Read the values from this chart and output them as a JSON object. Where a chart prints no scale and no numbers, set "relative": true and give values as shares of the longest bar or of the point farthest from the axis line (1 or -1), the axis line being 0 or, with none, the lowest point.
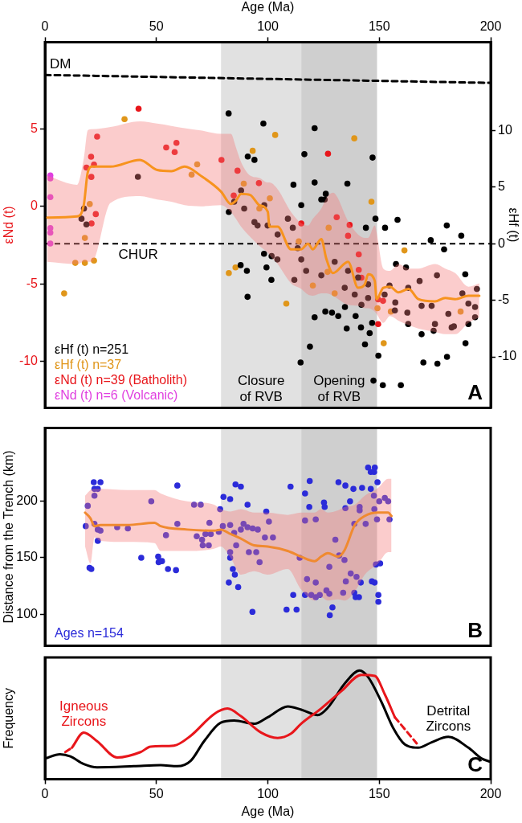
{
  "chart_data": [
    {
      "type": "scatter",
      "xlim": [
        0,
        200
      ],
      "tick_labels": "y",
      "x2label": "Age (Ma)",
      "x2lim": [
        0,
        200
      ],
      "x2ticks": [
        0,
        50,
        100,
        150,
        200
      ],
      "ylabel": "εNd (t)",
      "ylim": [
        -13,
        10.6
      ],
      "yticks": [
        -10,
        -5,
        0,
        5
      ],
      "y2label": "εHf (t)",
      "y2lim": [
        -14.5,
        17.8
      ],
      "y2ticks": [
        -10,
        -5,
        0,
        5,
        10
      ],
      "marker": "circle",
      "legend": "bottom left",
      "bands": [
        {
          "axis": "x",
          "from": 79,
          "to": 115,
          "label": "Closure of RVB",
          "color": "#e1e1e1"
        },
        {
          "axis": "x",
          "from": 115,
          "to": 149,
          "label": "Opening of RVB",
          "color": "#cfcfcf"
        }
      ],
      "ref_lines": [
        {
          "axis": "y2",
          "value": 0,
          "label": "CHUR",
          "line_style": "dashed",
          "color": "#000000"
        }
      ],
      "annotations": [
        "A"
      ],
      "series": [
        {
          "name": "εHf (t) n=251",
          "color": "#000000",
          "axis": "y2",
          "x": [
            82.4,
            98.0,
            121,
            91,
            94,
            116.4,
            147,
            41.7,
            111.5,
            121,
            135.7,
            126,
            115,
            148.3,
            158.2,
            152.6,
            144,
            180.3,
            186.8,
            173.1,
            179.1,
            17.5,
            16.4,
            18.6,
            98.3,
            101.7,
            104.3,
            87.8,
            90.6,
            99.4,
            101.6,
            90.9,
            125.8,
            128.8,
            131.6,
            134.6,
            139.4,
            135.4,
            141.8,
            146.8,
            121,
            145.7,
            143.6,
            118.9,
            114.7,
            149.6,
            147.4,
            151.6,
            159.7,
            169.8,
            176.1,
            180.4,
            188.7,
            174.4,
            169,
            183.5,
            193,
            190,
            188.6,
            175.9,
            168.1,
            157.5,
            162,
            154.6,
            157.2,
            162.6,
            173.5,
            181,
            187.3,
            82.5,
            84.9,
            88,
            89.4,
            94,
            95.4,
            98.4,
            99.9,
            104.4,
            109,
            111.2,
            113.4,
            115,
            117.2,
            111.9,
            124,
            124,
            125.5,
            130,
            136,
            134.5,
            139,
            142,
            145,
            140.5,
            145,
            152.4,
            157,
            163,
            169,
            163,
            175,
            182.5,
            190,
            193.8,
            193
          ],
          "values": [
            11.5,
            10.6,
            10.2,
            7.7,
            7.4,
            7.9,
            7.6,
            5.9,
            5.2,
            5.4,
            5.3,
            4.4,
            3.4,
            2.2,
            2.1,
            1.4,
            1.4,
            1.6,
            0.7,
            0.3,
            -0.5,
            3.1,
            2.2,
            1.7,
            -0.9,
            -1.1,
            -1.4,
            -1.9,
            -2.4,
            -2.1,
            -3.2,
            -4.7,
            -6.0,
            -6.1,
            -6.4,
            -5.6,
            -6.4,
            -7.5,
            -7.4,
            -7.0,
            -6.5,
            -7.9,
            -8.9,
            -9.1,
            -10.5,
            -9.9,
            -12.1,
            -12.5,
            -12.5,
            -10.5,
            -10.6,
            -10.0,
            -8.8,
            -7.7,
            -8.0,
            -7.3,
            -6.5,
            -5.3,
            -2.7,
            -2.8,
            -3.3,
            -1.8,
            -2.1,
            -3.7,
            -5.2,
            -6.1,
            -5.5,
            -6.2,
            -4.4,
            2.8,
            3.7,
            4.7,
            3.1,
            1.9,
            1.6,
            3.4,
            1.6,
            0.8,
            2.2,
            1.4,
            -0.4,
            -1.4,
            -2.4,
            -3.2,
            -2.8,
            3.9,
            3.9,
            -1.6,
            -2.4,
            -3.9,
            -4.5,
            -5.4,
            -4.8,
            -3.0,
            -3.6,
            -4.5,
            -5.9,
            -3.9,
            -5.5,
            -7.1,
            -7.1,
            -7.4,
            -7.1,
            -4.0,
            -5.6
          ]
        },
        {
          "name": "εHf (t) n=37",
          "color": "#e0961a",
          "axis": "y2",
          "x": [
            35.7,
            103.3,
            138.8,
            93.2,
            68.3,
            65.8,
            89.2,
            100.9,
            20.1,
            17.9,
            13.6,
            17.9,
            22,
            8.6,
            82.5,
            85.5,
            108.3,
            96.2,
            146.5,
            161.3,
            127.3,
            126.8,
            130,
            113.9,
            152,
            149.2,
            155.2,
            186.5,
            120.2
          ],
          "values": [
            11.0,
            9.6,
            9.3,
            8.2,
            7.0,
            6.1,
            5.3,
            4.0,
            3.5,
            0.5,
            -1.7,
            -1.7,
            -1.5,
            -4.4,
            -2.6,
            -2.1,
            -5.3,
            3.1,
            3.7,
            -0.6,
            1.4,
            -2.5,
            -4.4,
            0.2,
            -8.8,
            -5.7,
            -6.0,
            -6.0,
            -3.7
          ]
        },
        {
          "name": "εNd (t) n=39 (Batholith)",
          "color": "#e8161b",
          "axis": "y",
          "x": [
            42,
            23.4,
            20.7,
            18.6,
            22,
            20.8,
            22.8,
            20.9,
            54.4,
            58.2,
            59,
            79.2,
            86.4,
            96,
            84.7,
            127,
            130.9,
            115,
            136.7,
            136,
            140.8,
            140.8,
            142,
            149.5,
            149.5,
            151.7
          ],
          "values": [
            6.3,
            4.5,
            3.2,
            2.5,
            2.7,
            1.9,
            -0.5,
            -1.1,
            3.8,
            3.5,
            4.1,
            3.0,
            2.3,
            1.5,
            0.7,
            3.4,
            -0.7,
            -1.1,
            -1.2,
            -1.9,
            -3.1,
            -4.1,
            -4.6,
            -6.0,
            -7.6,
            -6.1
          ]
        },
        {
          "name": "εNd (t) n=6 (Volcanic)",
          "color": "#e040e0",
          "axis": "y",
          "x": [
            2.4,
            2.4,
            2.4,
            2.4,
            2.4,
            2.4
          ],
          "values": [
            2.0,
            1.8,
            0.6,
            -1.4,
            -1.7,
            -2.4
          ]
        },
        {
          "type": "line",
          "marker": "none",
          "color": "#f7931e",
          "axis": "y2",
          "x": [
            0.9,
            14.4,
            17.4,
            19.2,
            21.1,
            29.4,
            42.6,
            50.4,
            56.7,
            62.7,
            69.9,
            79,
            83.4,
            85.7,
            88,
            92.1,
            96.2,
            100,
            100.7,
            104.4,
            110.4,
            115,
            118,
            120.2,
            124,
            126.2,
            129.2,
            136,
            140.5,
            143.5,
            145,
            148,
            148.8,
            151.8,
            154.8,
            158.6,
            163.2,
            167.5,
            175,
            179.6,
            184.1,
            190,
            194.9
          ],
          "values": [
            2.3,
            2.4,
            3.4,
            6.3,
            6.8,
            6.8,
            7.4,
            6.5,
            6.4,
            6.8,
            6.0,
            4.6,
            3.5,
            3.8,
            4.4,
            4.3,
            3.4,
            2.8,
            1.5,
            1.5,
            -0.5,
            -0.5,
            0.0,
            -0.5,
            0.4,
            -1.3,
            -2.6,
            -1.6,
            -3.9,
            -3.6,
            -2.7,
            -3.3,
            -4.9,
            -3.9,
            -3.8,
            -4.3,
            -4.0,
            -4.9,
            -5.1,
            -4.8,
            -4.9,
            -4.6,
            -4.6
          ],
          "upper": [
            6.0,
            5.2,
            7.5,
            10.0,
            10.1,
            10.3,
            10.8,
            10.6,
            10.4,
            10.2,
            10.0,
            9.7,
            9.7,
            8.5,
            7.2,
            6.0,
            5.8,
            5.4,
            5.4,
            4.8,
            2.8,
            1.8,
            1.6,
            2.2,
            3.1,
            4.0,
            4.5,
            2.0,
            0.8,
            0.5,
            0.5,
            1.6,
            1.0,
            -2.2,
            -2.4,
            -1.8,
            -2.2,
            -2.2,
            -1.8,
            -2.2,
            -2.6,
            -3.8,
            -3.5
          ],
          "lower": [
            -1.6,
            -1.8,
            -1.6,
            -1.6,
            -1.6,
            3.6,
            4.2,
            3.9,
            3.7,
            3.4,
            3.3,
            3.4,
            2.8,
            2.2,
            1.5,
            0.6,
            -0.2,
            -0.8,
            -1.0,
            -1.8,
            -3.5,
            -4.0,
            -4.5,
            -4.6,
            -4.4,
            -4.4,
            -4.6,
            -5.4,
            -5.5,
            -5.7,
            -5.7,
            -6.0,
            -6.2,
            -7.0,
            -6.4,
            -6.8,
            -7.2,
            -7.5,
            -7.8,
            -8.0,
            -8.0,
            -7.0,
            -6.5
          ]
        },
        {
          "type": "line",
          "marker": "none",
          "name": "DM",
          "color": "#000000",
          "axis": "y2",
          "line_style": "dashed",
          "x": [
            0,
            200
          ],
          "values": [
            14.9,
            14.2
          ]
        }
      ]
    },
    {
      "type": "scatter",
      "ylabel": "Distance from the Trench (km)",
      "xlim": [
        0,
        200
      ],
      "ylim": [
        72,
        265
      ],
      "yticks": [
        100,
        150,
        200
      ],
      "tick_labels": "y",
      "marker": "circle",
      "legend": "bottom left",
      "bands": [
        {
          "axis": "x",
          "from": 79,
          "to": 115,
          "color": "#e1e1e1"
        },
        {
          "axis": "x",
          "from": 115,
          "to": 149,
          "color": "#cfcfcf"
        }
      ],
      "annotations": [
        "B"
      ],
      "series": [
        {
          "name": "Ages n=154",
          "color": "#2b2bd9",
          "x": [
            21.9,
            24.9,
            22.2,
            23.7,
            22.2,
            19.2,
            18.3,
            22.2,
            23.7,
            24.9,
            23.7,
            20,
            20.8,
            32.4,
            37.2,
            47.7,
            59.4,
            59.4,
            54.3,
            43.2,
            50.8,
            51,
            52.5,
            55.2,
            58.8,
            66.9,
            69.9,
            68.1,
            70.5,
            70.8,
            73.5,
            72,
            74.4,
            73.8,
            78,
            78.6,
            80.1,
            83.1,
            85.5,
            87.9,
            90.9,
            79.8,
            83.1,
            84.9,
            87.9,
            89.1,
            90.9,
            93.2,
            95.5,
            85.8,
            83.1,
            83.1,
            84.3,
            85.2,
            82.5,
            86.7,
            91.5,
            94.8,
            96.3,
            98.7,
            102.3,
            99.3,
            100.5,
            93.1,
            108.4,
            112.9,
            110.2,
            114.3,
            116.7,
            121.5,
            116.7,
            118.8,
            118.6,
            125.2,
            125.5,
            111.4,
            116.7,
            119.5,
            121.5,
            123.3,
            117.6,
            121.5,
            126.3,
            127.6,
            127.8,
            129,
            127.6,
            130.3,
            132,
            134.4,
            135,
            133.8,
            137.2,
            139.8,
            141.7,
            138.8,
            139.4,
            140.9,
            131.7,
            134.8,
            136.9,
            134.8,
            138.8,
            138.4,
            142.3,
            141.2,
            141.2,
            143.9,
            145,
            146.2,
            148,
            147.7,
            146.2,
            149.2,
            147.6,
            150,
            147.8,
            149,
            146.7,
            147.9,
            148.5,
            150.4,
            149.6,
            149.6,
            152.5,
            154,
            154.6
          ],
          "values": [
            217,
            217,
            211,
            211,
            205,
            196,
            178,
            180,
            175,
            174,
            165,
            141,
            140,
            177,
            176,
            200,
            214,
            180,
            170,
            150,
            151,
            146,
            147,
            140,
            139,
            197,
            197,
            169,
            166,
            161,
            161,
            171,
            171,
            181,
            173,
            193,
            204,
            202,
            215,
            213,
            197,
            178,
            179,
            172,
            175,
            180,
            177,
            176,
            175,
            161,
            155,
            150,
            140,
            135,
            128,
            124,
            155,
            155,
            146,
            168,
            168,
            191,
            182,
            102,
            104,
            104,
            213,
            150,
            183,
            184,
            207,
            218,
            195,
            199,
            195,
            117,
            117,
            117,
            115,
            117,
            131,
            128,
            121,
            118,
            99,
            106,
            142,
            166,
            152,
            148,
            129,
            119,
            136,
            133,
            128,
            119,
            115,
            115,
            217,
            214,
            200,
            194,
            180,
            211,
            212,
            195,
            192,
            180,
            230,
            226,
            230,
            226,
            211,
            217,
            205,
            200,
            193,
            184,
            129,
            128,
            144,
            145,
            117,
            111,
            203,
            200,
            184
          ]
        },
        {
          "type": "line",
          "marker": "none",
          "color": "#f08a30",
          "x": [
            18,
            20.4,
            22.2,
            24.9,
            36.9,
            49.2,
            51.9,
            63.8,
            75.9,
            78.9,
            83.3,
            87.9,
            93.8,
            99.9,
            108.9,
            114.9,
            121,
            123.9,
            126.9,
            131.5,
            134.5,
            139,
            143.5,
            149.5,
            154,
            155.5
          ],
          "values": [
            190,
            185,
            178,
            179,
            179,
            181,
            178,
            175,
            174,
            175,
            171,
            167,
            161,
            160,
            156,
            151,
            147,
            151,
            154,
            151,
            157,
            179,
            187,
            190,
            190,
            187
          ],
          "upper": [
            205,
            210,
            211,
            211,
            210,
            210,
            207,
            200,
            197,
            193,
            191,
            193,
            190,
            190,
            188,
            190,
            190,
            193,
            190,
            192,
            195,
            197,
            205,
            212,
            220,
            220
          ],
          "lower": [
            160,
            145,
            168,
            165,
            164,
            163,
            156,
            156,
            158,
            160,
            150,
            135,
            138,
            135,
            140,
            122,
            112,
            115,
            112,
            113,
            112,
            120,
            135,
            145,
            155,
            155
          ]
        }
      ]
    },
    {
      "type": "line",
      "relative": true,
      "xlabel": "Age (Ma)",
      "ylabel": "Frequency",
      "xlim": [
        0,
        200
      ],
      "xticks": [
        0,
        50,
        100,
        150,
        200
      ],
      "bands": [
        {
          "axis": "x",
          "from": 79,
          "to": 115,
          "color": "#e1e1e1"
        },
        {
          "axis": "x",
          "from": 115,
          "to": 149,
          "color": "#cfcfcf"
        }
      ],
      "annotations": [
        "C"
      ],
      "series": [
        {
          "name": "Igneous Zircons",
          "color": "#e8161b",
          "x": [
            12.1,
            17.4,
            23.4,
            32.4,
            42.9,
            47.4,
            57.9,
            65.4,
            75.9,
            81.9,
            87.9,
            96.9,
            104.4,
            110.4,
            114.9,
            123.9,
            133,
            142,
            148,
            152.5,
            157
          ],
          "values": [
            0.29,
            0.43,
            0.35,
            0.2,
            0.25,
            0.3,
            0.31,
            0.4,
            0.6,
            0.65,
            0.58,
            0.43,
            0.38,
            0.42,
            0.51,
            0.65,
            0.81,
            0.96,
            0.95,
            0.78,
            0.57
          ]
        },
        {
          "name": "Detrital Zircons",
          "color": "#000000",
          "x": [
            0,
            6.8,
            11.4,
            17.4,
            23.4,
            39.9,
            51.9,
            59.4,
            65.4,
            71.4,
            78.9,
            84.9,
            94,
            100,
            109,
            115,
            122.4,
            127,
            134.5,
            141.2,
            145,
            151,
            156.3,
            161.5,
            167.5,
            173.5,
            181,
            190,
            196,
            200
          ],
          "values": [
            0.19,
            0.23,
            0.21,
            0.14,
            0.11,
            0.12,
            0.13,
            0.12,
            0.17,
            0.35,
            0.52,
            0.54,
            0.51,
            0.57,
            0.67,
            0.64,
            0.59,
            0.66,
            0.88,
            1.0,
            0.94,
            0.71,
            0.47,
            0.32,
            0.29,
            0.34,
            0.39,
            0.29,
            0.19,
            0.16
          ]
        },
        {
          "color": "#e8161b",
          "line_style": "dashed",
          "x": [
            9.1,
            12.1
          ],
          "values": [
            0.25,
            0.29
          ]
        },
        {
          "color": "#e8161b",
          "line_style": "dashed",
          "x": [
            157,
            166.8
          ],
          "values": [
            0.57,
            0.33
          ]
        }
      ]
    }
  ]
}
